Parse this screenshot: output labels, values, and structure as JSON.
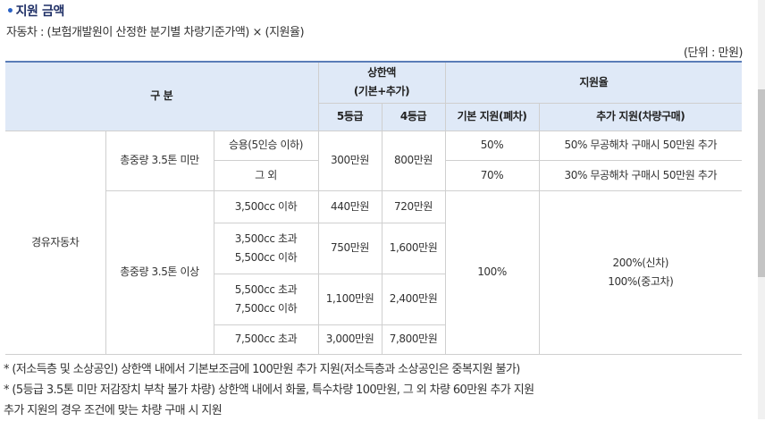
{
  "section": {
    "bullet": "•",
    "title": "지원 금액",
    "formula": "자동차 : (보험개발원이 산정한 분기별 차량기준가액) × (지원율)",
    "unit": "(단위 : 만원)"
  },
  "table": {
    "headers": {
      "category": "구 분",
      "limit": "상한액",
      "limit_sub": "(기본+추가)",
      "grade5": "5등급",
      "grade4": "4등급",
      "rate": "지원율",
      "rate_basic": "기본 지원(폐차)",
      "rate_extra": "추가 지원(차량구매)"
    },
    "vehicle_type": "경유자동차",
    "under35": {
      "label": "총중량 3.5톤 미만",
      "rows": [
        {
          "sub": "승용(5인승 이하)",
          "basic": "50%",
          "extra": "50% 무공해차 구매시 50만원 추가"
        },
        {
          "sub": "그 외",
          "basic": "70%",
          "extra": "30% 무공해차 구매시 50만원 추가"
        }
      ],
      "grade5": "300만원",
      "grade4": "800만원"
    },
    "over35": {
      "label": "총중량 3.5톤 이상",
      "rows": [
        {
          "sub": "3,500cc 이하",
          "grade5": "440만원",
          "grade4": "720만원"
        },
        {
          "sub": "3,500cc 초과\n5,500cc 이하",
          "grade5": "750만원",
          "grade4": "1,600만원"
        },
        {
          "sub": "5,500cc 초과\n7,500cc 이하",
          "grade5": "1,100만원",
          "grade4": "2,400만원"
        },
        {
          "sub": "7,500cc 초과",
          "grade5": "3,000만원",
          "grade4": "7,800만원"
        }
      ],
      "basic": "100%",
      "extra": "200%(신차)\n100%(중고차)"
    }
  },
  "notes": [
    "* (저소득층 및 소상공인) 상한액 내에서 기본보조금에 100만원 추가 지원(저소득층과 소상공인은 중복지원 불가)",
    "* (5등급 3.5톤 미만 저감장치 부착 불가 차량) 상한액 내에서 화물, 특수차량 100만원, 그 외 차량 60만원 추가 지원",
    "추가 지원의 경우 조건에 맞는 차량 구매 시 지원"
  ]
}
